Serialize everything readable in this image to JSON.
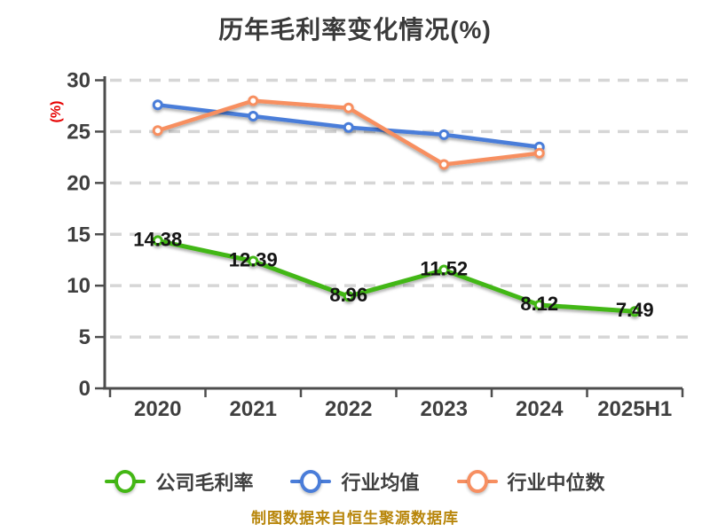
{
  "title": "历年毛利率变化情况(%)",
  "footer": "制图数据来自恒生聚源数据库",
  "colors": {
    "title_text": "#3a3a3a",
    "axis_line": "#4d4d4d",
    "tick_label": "#3f3f3f",
    "grid_line": "#d6d6d6",
    "y_axis_name": "#e60000",
    "data_label": "#141414",
    "footer_text": "#b8860b",
    "background": "#ffffff"
  },
  "chart_data": {
    "type": "line",
    "categories": [
      "2020",
      "2021",
      "2022",
      "2023",
      "2024",
      "2025H1"
    ],
    "series": [
      {
        "name": "公司毛利率",
        "color": "#43b714",
        "values": [
          14.38,
          12.39,
          8.96,
          11.52,
          8.12,
          7.49
        ],
        "labels": [
          "14.38",
          "12.39",
          "8.96",
          "11.52",
          "8.12",
          "7.49"
        ]
      },
      {
        "name": "行业均值",
        "color": "#4a7dd9",
        "values": [
          27.6,
          26.5,
          25.4,
          24.7,
          23.5,
          null
        ]
      },
      {
        "name": "行业中位数",
        "color": "#f78f61",
        "values": [
          25.1,
          28.0,
          27.3,
          21.8,
          22.9,
          null
        ]
      }
    ],
    "ylabel": "(%)",
    "xlabel": "",
    "ylim": [
      0,
      30
    ],
    "yticks": [
      0,
      5,
      10,
      15,
      20,
      25,
      30
    ],
    "grid": "horizontal-dashed",
    "legend_position": "bottom",
    "markers": "white-filled-circles"
  }
}
